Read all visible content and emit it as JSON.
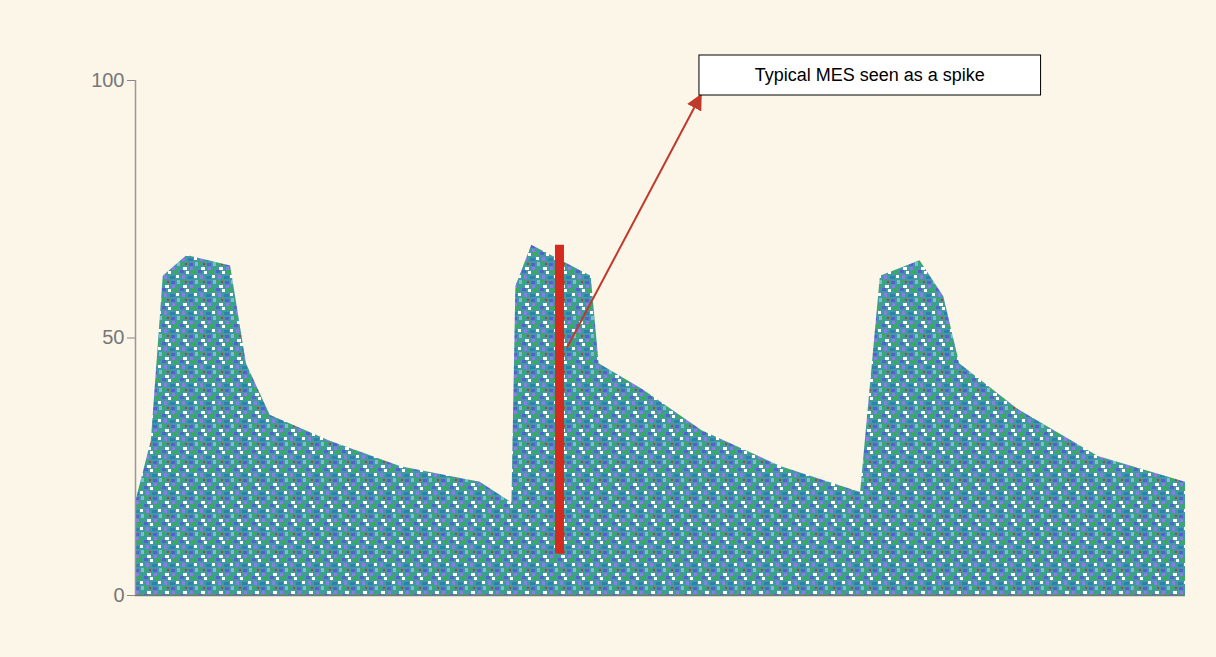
{
  "chart_data": {
    "type": "area",
    "x": [
      0.48,
      0.52,
      0.55,
      0.61,
      0.72,
      0.76,
      0.82,
      0.97,
      1.15,
      1.35,
      1.43,
      1.44,
      1.48,
      1.63,
      1.65,
      1.76,
      1.91,
      2.11,
      2.31,
      2.36,
      2.46,
      2.52,
      2.56,
      2.71,
      2.91,
      3.13
    ],
    "values": [
      18,
      30,
      62,
      66,
      64,
      45,
      35,
      30,
      25,
      22,
      18,
      60,
      68,
      62,
      45,
      40,
      32,
      25,
      20,
      62,
      65,
      58,
      45,
      36,
      27,
      22
    ],
    "mes_spike": {
      "x": 1.55,
      "low": 8,
      "high": 68,
      "color": "#d42a20"
    },
    "annotation": "Typical MES seen as a spike",
    "xlim": [
      0.48,
      3.13
    ],
    "xticks": [
      1,
      2,
      3
    ],
    "ylim": [
      0,
      100
    ],
    "yticks": [
      0,
      50,
      100
    ],
    "tick_labels": "y",
    "grid": false
  }
}
